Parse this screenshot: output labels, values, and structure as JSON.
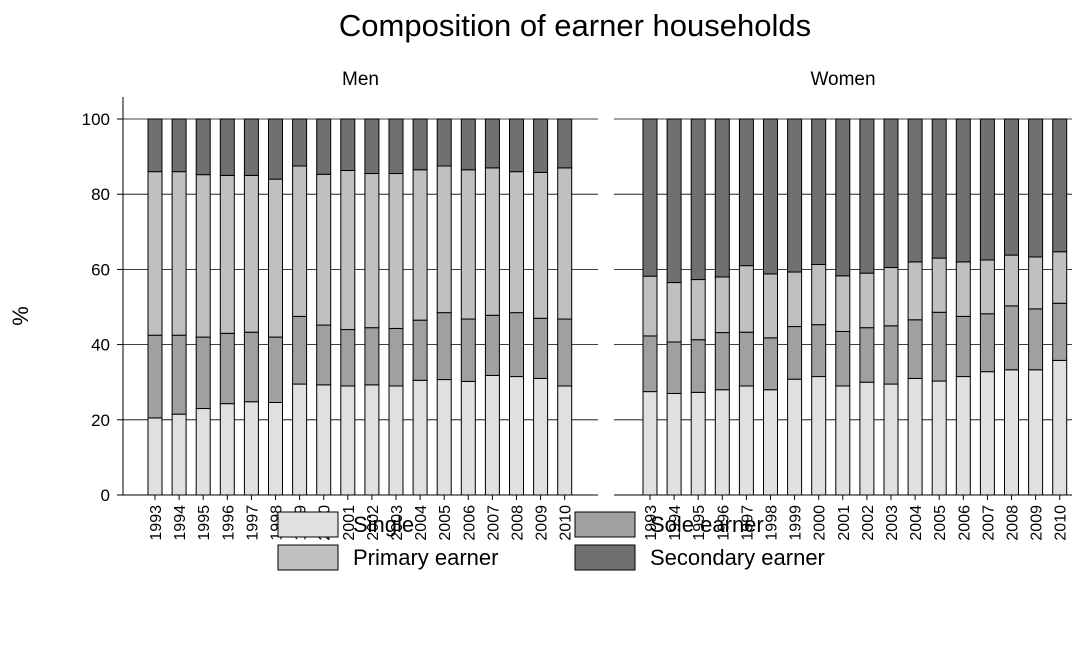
{
  "chart_data": {
    "type": "bar",
    "stacked": true,
    "title": "Composition of earner households",
    "y_label": "%",
    "panels": [
      "Men",
      "Women"
    ],
    "categories": [
      "1993",
      "1994",
      "1995",
      "1996",
      "1997",
      "1998",
      "1999",
      "2000",
      "2001",
      "2002",
      "2003",
      "2004",
      "2005",
      "2006",
      "2007",
      "2008",
      "2009",
      "2010"
    ],
    "ylim": [
      0,
      100
    ],
    "yticks": [
      0,
      20,
      40,
      60,
      80,
      100
    ],
    "grid": true,
    "series": [
      {
        "name": "Single",
        "color": "#e0e0e0",
        "values": [
          [
            20.5,
            21.5,
            23,
            24.3,
            24.8,
            24.6,
            29.5,
            29.3,
            29,
            29.3,
            29,
            30.5,
            30.7,
            30.2,
            31.8,
            31.5,
            31,
            29
          ],
          [
            27.5,
            27,
            27.3,
            28,
            29,
            28,
            30.8,
            31.5,
            29,
            30,
            29.5,
            31,
            30.3,
            31.5,
            32.8,
            33.3,
            33.3,
            35.8
          ]
        ]
      },
      {
        "name": "Sole earner",
        "color": "#a0a0a0",
        "values": [
          [
            22,
            21,
            19,
            18.7,
            18.5,
            17.4,
            18,
            15.9,
            15,
            15.2,
            15.3,
            16,
            17.8,
            16.6,
            16,
            17,
            16,
            17.8
          ],
          [
            14.8,
            13.7,
            14,
            15.2,
            14.3,
            13.8,
            14,
            13.8,
            14.5,
            14.5,
            15.5,
            15.6,
            18.3,
            16,
            15.4,
            17,
            16.2,
            15.2
          ]
        ]
      },
      {
        "name": "Primary earner",
        "color": "#c0c0c0",
        "values": [
          [
            43.5,
            43.5,
            43.2,
            42,
            41.7,
            42,
            40,
            40.1,
            42.3,
            41,
            41.2,
            40,
            39,
            39.7,
            39.2,
            37.5,
            38.8,
            40.2
          ],
          [
            15.9,
            15.8,
            16,
            14.8,
            17.7,
            17,
            14.5,
            16,
            14.8,
            14.5,
            15.5,
            15.4,
            14.4,
            14.5,
            14.3,
            13.5,
            13.8,
            13.7
          ]
        ]
      },
      {
        "name": "Secondary earner",
        "color": "#707070",
        "values": [
          [
            14,
            14,
            14.8,
            15,
            15,
            16,
            12.5,
            14.7,
            13.7,
            14.5,
            14.5,
            13.5,
            12.5,
            13.5,
            13,
            14,
            14.2,
            13
          ],
          [
            41.8,
            43.5,
            42.7,
            42,
            39,
            41.2,
            40.7,
            38.7,
            41.7,
            41,
            39.5,
            38,
            37,
            38,
            37.5,
            36.2,
            36.7,
            35.3
          ]
        ]
      }
    ]
  }
}
